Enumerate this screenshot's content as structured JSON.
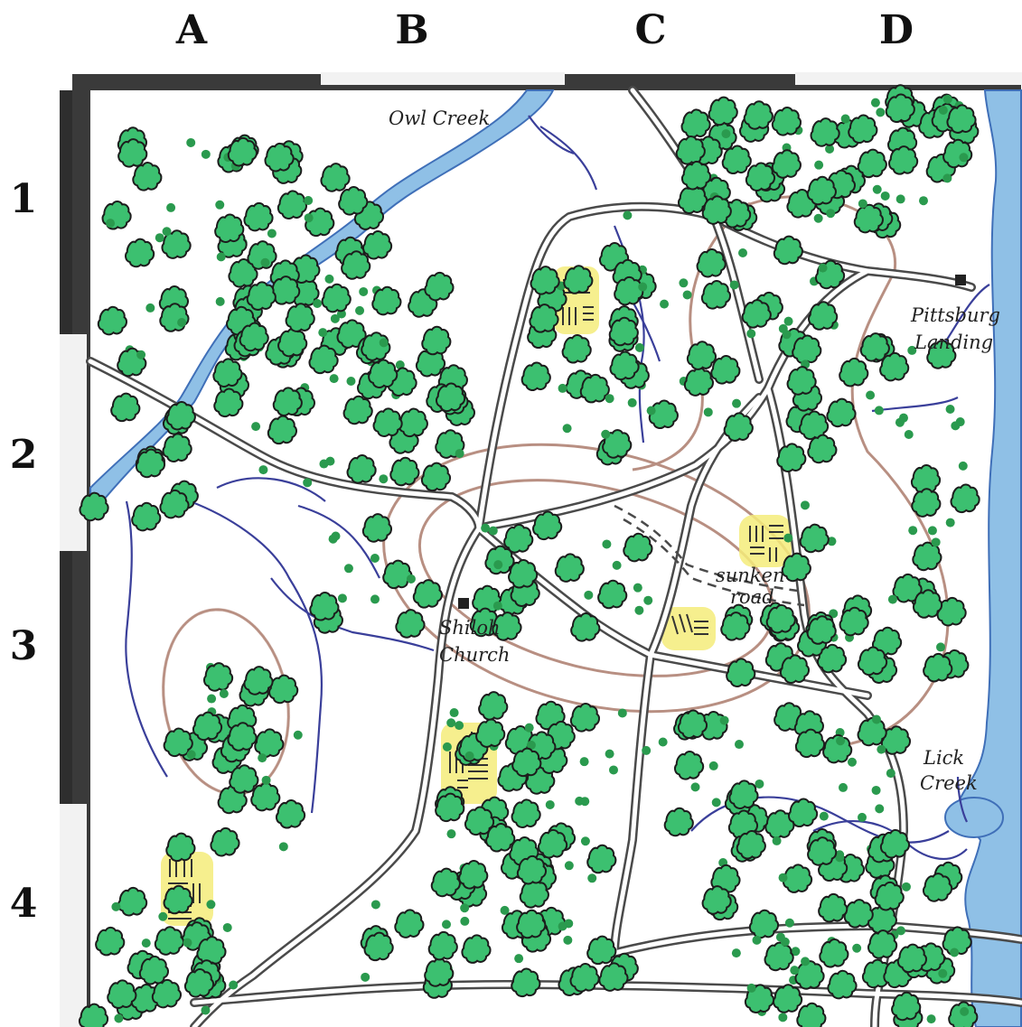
{
  "grid": {
    "columns": [
      "A",
      "B",
      "C",
      "D"
    ],
    "rows": [
      "1",
      "2",
      "3",
      "4"
    ]
  },
  "places": {
    "owl_creek": "Owl Creek",
    "pittsburg_line1": "Pittsburg",
    "pittsburg_line2": "Landing",
    "shiloh_line1": "Shiloh",
    "shiloh_line2": "Church",
    "sunken_line1": "sunken",
    "sunken_line2": "road",
    "lick_line1": "Lick",
    "lick_line2": "Creek"
  },
  "colors": {
    "tree_fill": "#3cc070",
    "tree_outline": "#1c1c1c",
    "dot": "#2a9a4e",
    "road": "#4a4a4a",
    "water": "#8fc0e6",
    "water_edge": "#3f6fb8",
    "stream": "#3a3f9a",
    "field": "#f4ec7a",
    "contour": "#a06a58",
    "frame": "#2e2e2e"
  }
}
